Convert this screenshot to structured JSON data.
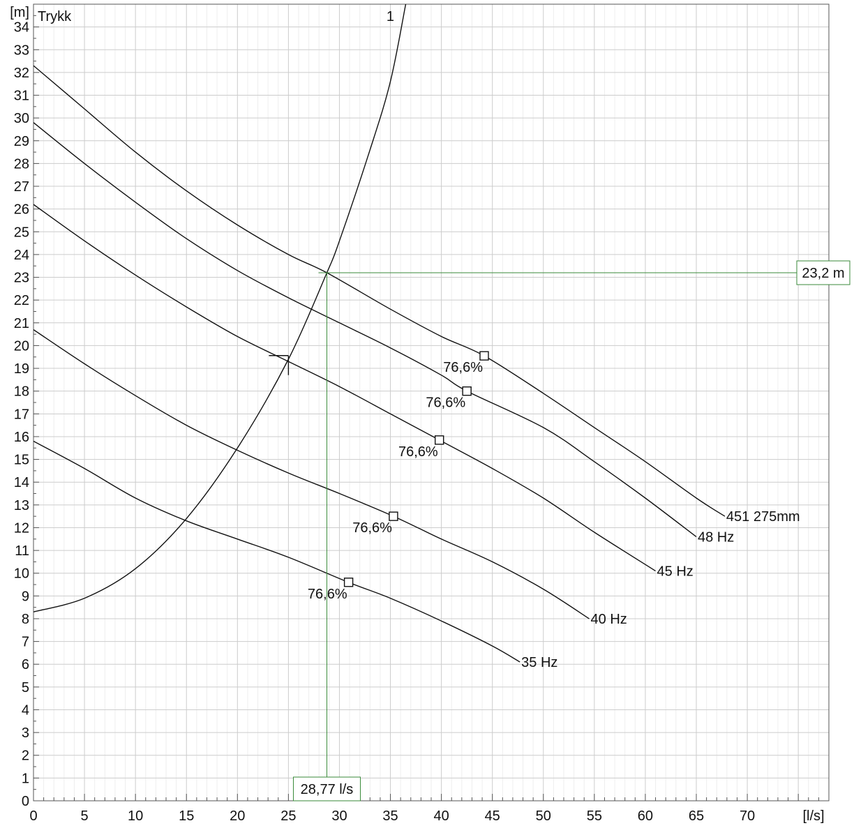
{
  "chart_data": {
    "type": "line",
    "title": "Trykk",
    "xlabel": "[l/s]",
    "ylabel": "[m]",
    "xlim": [
      0,
      78
    ],
    "ylim": [
      0,
      35
    ],
    "xticks": [
      0,
      5,
      10,
      15,
      20,
      25,
      30,
      35,
      40,
      45,
      50,
      55,
      60,
      65,
      70
    ],
    "yticks": [
      0,
      1,
      2,
      3,
      4,
      5,
      6,
      7,
      8,
      9,
      10,
      11,
      12,
      13,
      14,
      15,
      16,
      17,
      18,
      19,
      20,
      21,
      22,
      23,
      24,
      25,
      26,
      27,
      28,
      29,
      30,
      31,
      32,
      33,
      34
    ],
    "grid": true,
    "colors": {
      "curve": "#111111",
      "operating": "#3a8a3a",
      "grid": "#cccccc"
    },
    "series": [
      {
        "name": "451 275mm",
        "x": [
          0,
          5,
          10,
          15,
          20,
          25,
          28.77,
          35,
          40,
          44.2,
          50,
          55,
          60,
          65,
          67.8
        ],
        "y": [
          32.3,
          30.4,
          28.5,
          26.8,
          25.3,
          24.0,
          23.2,
          21.6,
          20.4,
          19.55,
          17.9,
          16.4,
          14.9,
          13.3,
          12.5
        ],
        "efficiency_point": {
          "x": 44.2,
          "y": 19.55,
          "label": "76,6%"
        }
      },
      {
        "name": "48 Hz",
        "x": [
          0,
          5,
          10,
          15,
          20,
          25,
          30,
          35,
          40,
          42.5,
          50,
          55,
          60,
          65
        ],
        "y": [
          29.8,
          28.0,
          26.3,
          24.7,
          23.3,
          22.1,
          21.0,
          19.9,
          18.7,
          18.0,
          16.4,
          14.9,
          13.3,
          11.6
        ],
        "efficiency_point": {
          "x": 42.5,
          "y": 18.0,
          "label": "76,6%"
        }
      },
      {
        "name": "45 Hz",
        "x": [
          0,
          5,
          10,
          15,
          20,
          25,
          30,
          35,
          39.8,
          45,
          50,
          55,
          61
        ],
        "y": [
          26.2,
          24.6,
          23.1,
          21.7,
          20.4,
          19.3,
          18.2,
          17.0,
          15.85,
          14.6,
          13.3,
          11.8,
          10.1
        ],
        "efficiency_point": {
          "x": 39.8,
          "y": 15.85,
          "label": "76,6%"
        }
      },
      {
        "name": "40 Hz",
        "x": [
          0,
          5,
          10,
          15,
          20,
          25,
          30,
          35.3,
          40,
          45,
          50,
          54.5
        ],
        "y": [
          20.7,
          19.2,
          17.8,
          16.5,
          15.4,
          14.4,
          13.5,
          12.5,
          11.5,
          10.5,
          9.3,
          8.0
        ],
        "efficiency_point": {
          "x": 35.3,
          "y": 12.5,
          "label": "76,6%"
        }
      },
      {
        "name": "35 Hz",
        "x": [
          0,
          5,
          10,
          15,
          20,
          25,
          30.9,
          35,
          40,
          45,
          47.7
        ],
        "y": [
          15.8,
          14.6,
          13.3,
          12.3,
          11.5,
          10.7,
          9.6,
          8.9,
          7.9,
          6.8,
          6.1
        ],
        "efficiency_point": {
          "x": 30.9,
          "y": 9.6,
          "label": "76,6%"
        }
      },
      {
        "name": "1",
        "x": [
          0,
          5,
          10,
          15,
          20,
          25,
          28.77,
          30,
          33,
          35,
          36.5
        ],
        "y": [
          8.3,
          8.9,
          10.2,
          12.4,
          15.5,
          19.4,
          23.2,
          24.6,
          28.6,
          31.6,
          35.0
        ]
      }
    ],
    "operating_point": {
      "x": 28.77,
      "y": 23.2,
      "x_label": "28,77 l/s",
      "y_label": "23,2 m"
    },
    "system_curve_label": "1",
    "min_flow_marker": {
      "x": 25,
      "y": 19.5
    }
  }
}
